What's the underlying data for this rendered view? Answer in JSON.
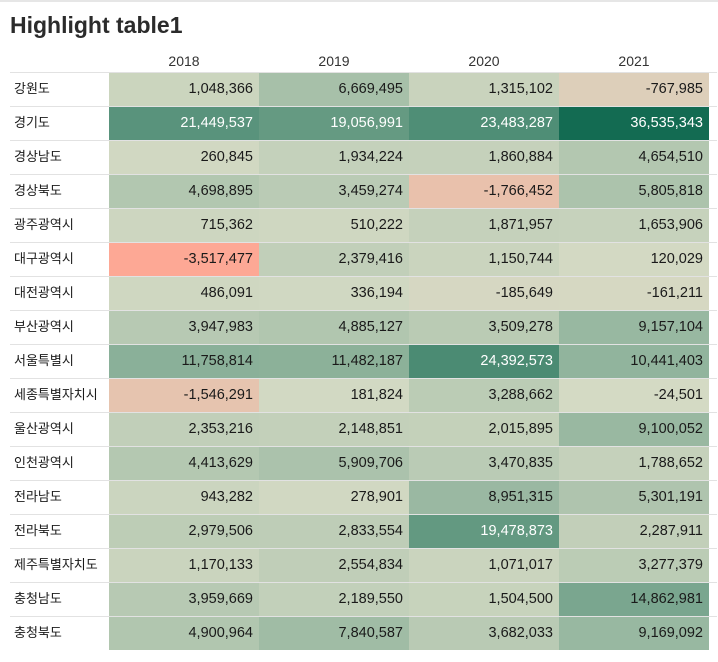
{
  "title": "Highlight table1",
  "chart_data": {
    "type": "table",
    "title": "Highlight table1",
    "columns": [
      "2018",
      "2019",
      "2020",
      "2021"
    ],
    "rows": [
      {
        "label": "강원도",
        "values": [
          1048366,
          6669495,
          1315102,
          -767985
        ]
      },
      {
        "label": "경기도",
        "values": [
          21449537,
          19056991,
          23483287,
          36535343
        ]
      },
      {
        "label": "경상남도",
        "values": [
          260845,
          1934224,
          1860884,
          4654510
        ]
      },
      {
        "label": "경상북도",
        "values": [
          4698895,
          3459274,
          -1766452,
          5805818
        ]
      },
      {
        "label": "광주광역시",
        "values": [
          715362,
          510222,
          1871957,
          1653906
        ]
      },
      {
        "label": "대구광역시",
        "values": [
          -3517477,
          2379416,
          1150744,
          120029
        ]
      },
      {
        "label": "대전광역시",
        "values": [
          486091,
          336194,
          -185649,
          -161211
        ]
      },
      {
        "label": "부산광역시",
        "values": [
          3947983,
          4885127,
          3509278,
          9157104
        ]
      },
      {
        "label": "서울특별시",
        "values": [
          11758814,
          11482187,
          24392573,
          10441403
        ]
      },
      {
        "label": "세종특별자치시",
        "values": [
          -1546291,
          181824,
          3288662,
          -24501
        ]
      },
      {
        "label": "울산광역시",
        "values": [
          2353216,
          2148851,
          2015895,
          9100052
        ]
      },
      {
        "label": "인천광역시",
        "values": [
          4413629,
          5909706,
          3470835,
          1788652
        ]
      },
      {
        "label": "전라남도",
        "values": [
          943282,
          278901,
          8951315,
          5301191
        ]
      },
      {
        "label": "전라북도",
        "values": [
          2979506,
          2833554,
          19478873,
          2287911
        ]
      },
      {
        "label": "제주특별자치도",
        "values": [
          1170133,
          2554834,
          1071017,
          3277379
        ]
      },
      {
        "label": "충청남도",
        "values": [
          3959669,
          2189550,
          1504500,
          14862981
        ]
      },
      {
        "label": "충청북도",
        "values": [
          4900964,
          7840587,
          3682033,
          9169092
        ]
      }
    ],
    "color_scale": {
      "type": "diverging",
      "min_color": "#fda895",
      "mid_color": "#d4dac4",
      "max_color": "#136b52"
    }
  }
}
